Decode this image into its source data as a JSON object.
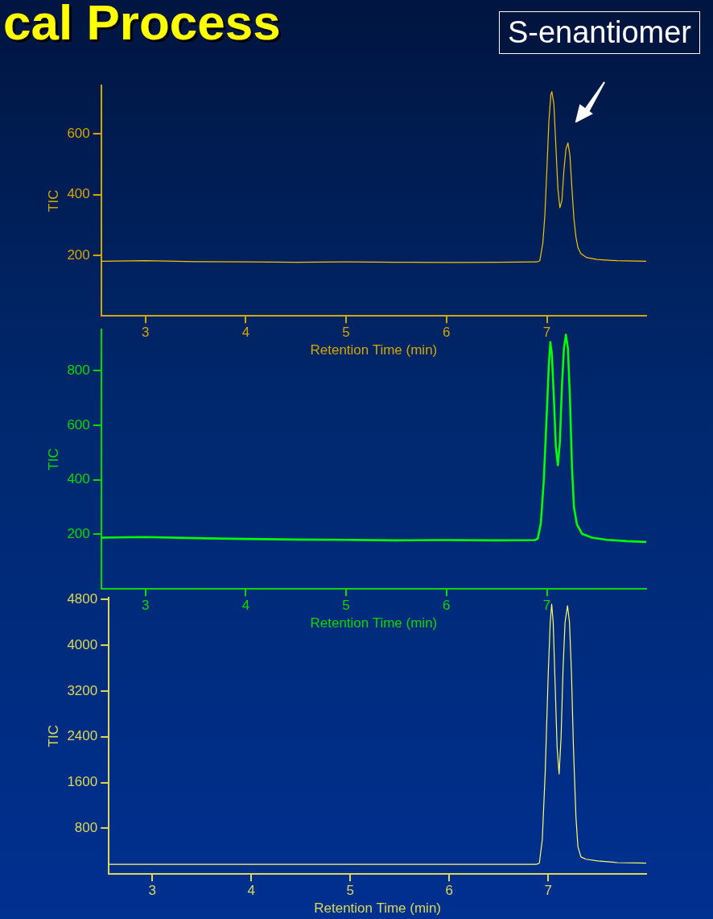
{
  "chart_data": [
    {
      "type": "line",
      "title": "cal Process",
      "annotations": [
        "S-enantiomer"
      ],
      "xlabel": "Retention Time (min)",
      "ylabel": "TIC",
      "xlim": [
        2.56,
        7.99
      ],
      "xticks": [
        3,
        4,
        5,
        6,
        7
      ],
      "ylim": [
        0,
        760
      ],
      "yticks": [
        200,
        400,
        600
      ],
      "grid": false,
      "legend": false,
      "marker": "none",
      "line_style": "solid",
      "series": [
        {
          "color": "#f5c400",
          "x": [
            2.56,
            3.0,
            3.5,
            4.0,
            4.5,
            5.0,
            5.5,
            6.0,
            6.5,
            6.9,
            6.93,
            6.96,
            6.98,
            7.0,
            7.02,
            7.04,
            7.05,
            7.07,
            7.09,
            7.11,
            7.13,
            7.15,
            7.17,
            7.19,
            7.21,
            7.23,
            7.25,
            7.27,
            7.29,
            7.31,
            7.34,
            7.4,
            7.5,
            7.7,
            7.99
          ],
          "values": [
            180,
            182,
            179,
            178,
            177,
            178,
            177,
            176,
            177,
            178,
            182,
            240,
            330,
            480,
            640,
            730,
            740,
            700,
            560,
            420,
            357,
            380,
            480,
            550,
            571,
            530,
            420,
            320,
            260,
            225,
            205,
            192,
            186,
            182,
            180
          ]
        }
      ]
    },
    {
      "type": "line",
      "xlabel": "Retention Time (min)",
      "ylabel": "TIC",
      "xlim": [
        2.56,
        7.99
      ],
      "xticks": [
        3,
        4,
        5,
        6,
        7
      ],
      "ylim": [
        0,
        950
      ],
      "yticks": [
        200,
        400,
        600,
        800
      ],
      "grid": false,
      "legend": false,
      "marker": "none",
      "line_style": "solid",
      "series": [
        {
          "color": "#00ff00",
          "x": [
            2.56,
            3.0,
            3.5,
            4.0,
            4.5,
            5.0,
            5.5,
            6.0,
            6.5,
            6.88,
            6.91,
            6.94,
            6.97,
            7.0,
            7.02,
            7.035,
            7.05,
            7.07,
            7.09,
            7.11,
            7.13,
            7.15,
            7.17,
            7.19,
            7.21,
            7.23,
            7.25,
            7.27,
            7.3,
            7.35,
            7.45,
            7.6,
            7.8,
            7.99
          ],
          "values": [
            188,
            190,
            186,
            183,
            181,
            180,
            178,
            179,
            178,
            179,
            185,
            240,
            400,
            650,
            820,
            904,
            860,
            700,
            520,
            453,
            540,
            740,
            880,
            931,
            880,
            700,
            450,
            300,
            236,
            202,
            188,
            180,
            175,
            172
          ]
        }
      ]
    },
    {
      "type": "line",
      "xlabel": "Retention Time (min)",
      "ylabel": "TIC",
      "xlim": [
        2.56,
        7.99
      ],
      "xticks": [
        3,
        4,
        5,
        6,
        7
      ],
      "ylim": [
        0,
        4830
      ],
      "yticks": [
        800,
        1600,
        2400,
        3200,
        4000,
        4800
      ],
      "grid": false,
      "legend": false,
      "marker": "none",
      "line_style": "solid",
      "series": [
        {
          "color": "#ffff66",
          "x": [
            2.56,
            3.0,
            4.0,
            5.0,
            6.0,
            6.88,
            6.91,
            6.94,
            6.97,
            7.0,
            7.02,
            7.035,
            7.05,
            7.07,
            7.09,
            7.11,
            7.13,
            7.15,
            7.17,
            7.195,
            7.215,
            7.235,
            7.255,
            7.28,
            7.3,
            7.33,
            7.38,
            7.5,
            7.7,
            7.99
          ],
          "values": [
            170,
            170,
            170,
            170,
            170,
            170,
            190,
            600,
            1800,
            3500,
            4400,
            4720,
            4400,
            3300,
            2200,
            1750,
            2400,
            3600,
            4400,
            4690,
            4400,
            3500,
            2200,
            1000,
            480,
            300,
            260,
            230,
            200,
            190
          ]
        }
      ]
    }
  ]
}
